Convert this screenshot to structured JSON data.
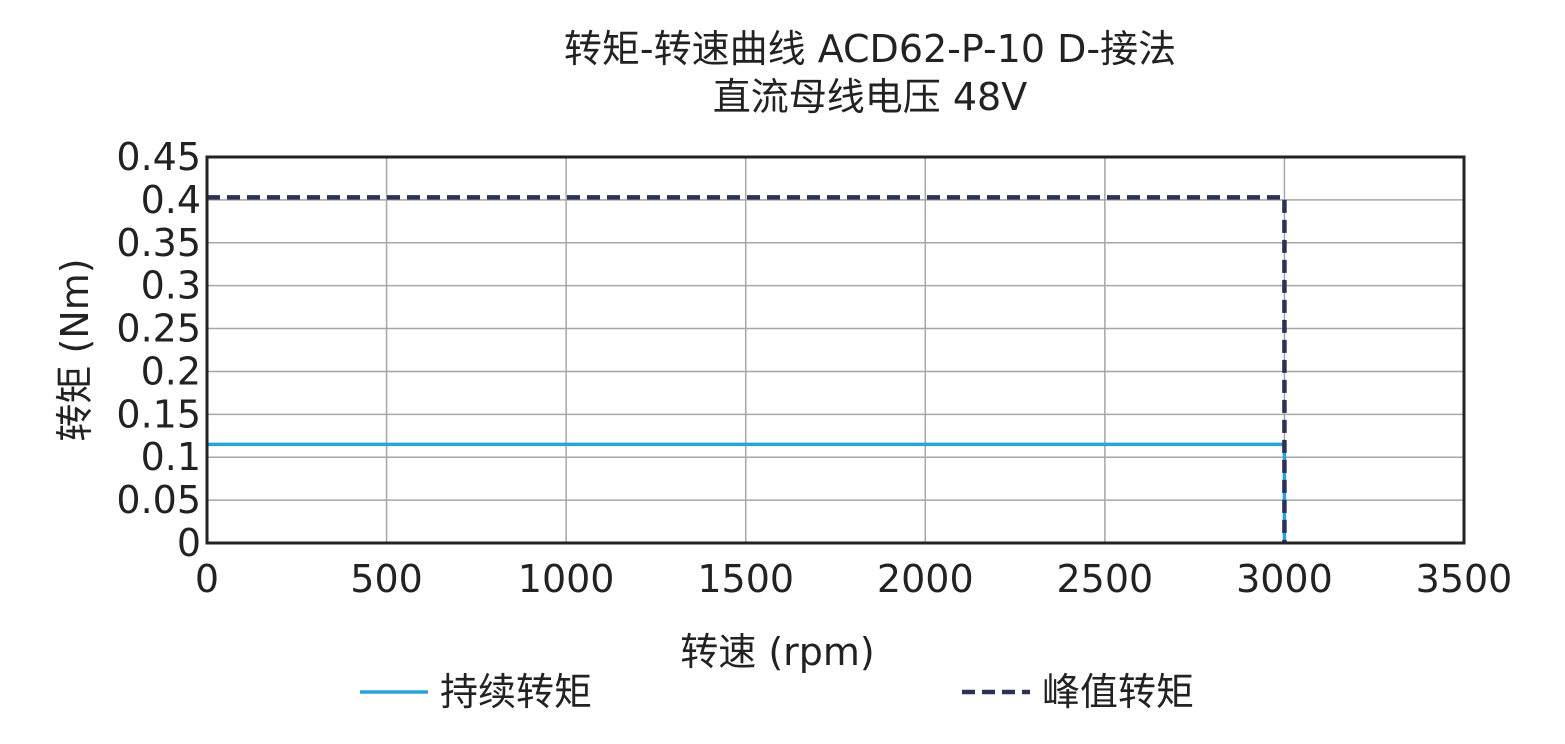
{
  "chart_data": {
    "type": "line",
    "title_lines": [
      "转矩-转速曲线 ACD62-P-10 D-接法",
      "直流母线电压 48V"
    ],
    "xlabel": "转速 (rpm)",
    "ylabel": "转矩 (Nm)",
    "xlim": [
      0,
      3500
    ],
    "ylim": [
      0,
      0.45
    ],
    "x_ticks": [
      "0",
      "500",
      "1000",
      "1500",
      "2000",
      "2500",
      "3000",
      "3500"
    ],
    "y_ticks": [
      "0",
      "0.05",
      "0.1",
      "0.15",
      "0.2",
      "0.25",
      "0.3",
      "0.35",
      "0.4",
      "0.45"
    ],
    "x_tick_values": [
      0,
      500,
      1000,
      1500,
      2000,
      2500,
      3000,
      3500
    ],
    "y_tick_values": [
      0,
      0.05,
      0.1,
      0.15,
      0.2,
      0.25,
      0.3,
      0.35,
      0.4,
      0.45
    ],
    "grid": true,
    "legend_position": "bottom",
    "series": [
      {
        "name": "持续转矩",
        "color": "#2aa3d6",
        "style": "solid",
        "points": [
          [
            0,
            0.115
          ],
          [
            3000,
            0.115
          ],
          [
            3000,
            0
          ]
        ]
      },
      {
        "name": "峰值转矩",
        "color": "#2b3157",
        "style": "dashed",
        "points": [
          [
            0,
            0.403
          ],
          [
            3000,
            0.403
          ],
          [
            3000,
            0
          ]
        ]
      }
    ]
  }
}
